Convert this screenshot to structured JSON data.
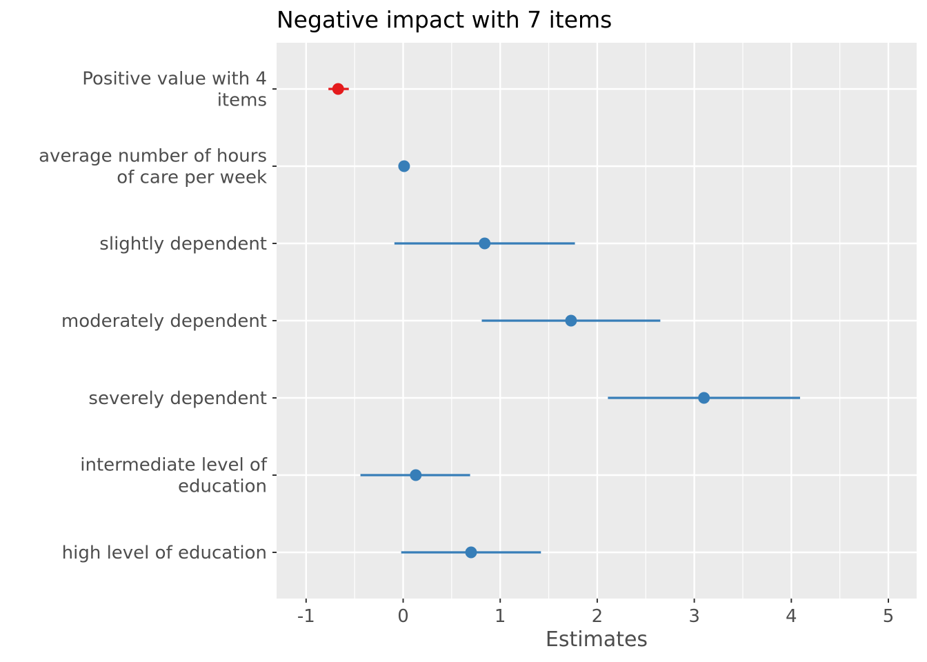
{
  "chart_data": {
    "type": "scatter",
    "title": "Negative impact with 7 items",
    "xlabel": "Estimates",
    "ylabel": "",
    "xlim": [
      -1.3,
      5.3
    ],
    "x_ticks": [
      -1,
      0,
      1,
      2,
      3,
      4,
      5
    ],
    "x_tick_labels": [
      "-1",
      "0",
      "1",
      "2",
      "3",
      "4",
      "5"
    ],
    "grid": true,
    "colors": {
      "positive": "#377eb8",
      "negative": "#e41a1c",
      "panel_background": "#ebebeb",
      "grid": "#ffffff",
      "tick_text": "#4d4d4d"
    },
    "terms": [
      {
        "label": "Positive value with 4\nitems",
        "estimate": -0.67,
        "ci_low": -0.77,
        "ci_high": -0.56,
        "sign": "negative"
      },
      {
        "label": "average number of hours\nof care per week",
        "estimate": 0.01,
        "ci_low": 0.0,
        "ci_high": 0.02,
        "sign": "positive"
      },
      {
        "label": "slightly dependent",
        "estimate": 0.84,
        "ci_low": -0.09,
        "ci_high": 1.77,
        "sign": "positive"
      },
      {
        "label": "moderately dependent",
        "estimate": 1.73,
        "ci_low": 0.81,
        "ci_high": 2.65,
        "sign": "positive"
      },
      {
        "label": "severely dependent",
        "estimate": 3.1,
        "ci_low": 2.11,
        "ci_high": 4.09,
        "sign": "positive"
      },
      {
        "label": "intermediate level of\neducation",
        "estimate": 0.13,
        "ci_low": -0.44,
        "ci_high": 0.69,
        "sign": "positive"
      },
      {
        "label": "high level of education",
        "estimate": 0.7,
        "ci_low": -0.02,
        "ci_high": 1.42,
        "sign": "positive"
      }
    ]
  }
}
